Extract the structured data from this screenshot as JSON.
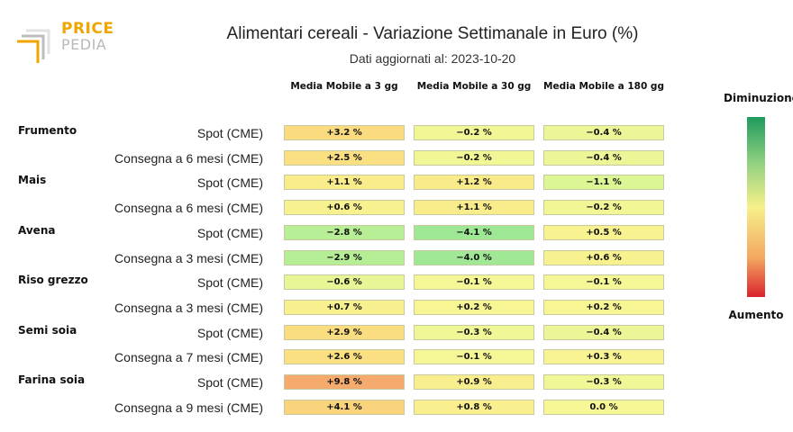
{
  "logo": {
    "line1": "PRICE",
    "line2": "PEDIA",
    "icon": "pricepedia-logo-icon"
  },
  "chart_data": {
    "type": "table",
    "title": "Alimentari cereali - Variazione Settimanale in Euro (%)",
    "subtitle": "Dati aggiornati al: 2023-10-20",
    "columns": [
      "Media Mobile a 3 gg",
      "Media Mobile a 30 gg",
      "Media Mobile a 180 gg"
    ],
    "groups": [
      {
        "name": "Frumento",
        "rows": [
          {
            "label": "Spot (CME)",
            "values": [
              3.2,
              -0.2,
              -0.4
            ],
            "display": [
              "+3.2 %",
              "−0.2 %",
              "−0.4 %"
            ]
          },
          {
            "label": "Consegna a 6 mesi (CME)",
            "values": [
              2.5,
              -0.2,
              -0.4
            ],
            "display": [
              "+2.5 %",
              "−0.2 %",
              "−0.4 %"
            ]
          }
        ]
      },
      {
        "name": "Mais",
        "rows": [
          {
            "label": "Spot (CME)",
            "values": [
              1.1,
              1.2,
              -1.1
            ],
            "display": [
              "+1.1 %",
              "+1.2 %",
              "−1.1 %"
            ]
          },
          {
            "label": "Consegna a 6 mesi (CME)",
            "values": [
              0.6,
              1.1,
              -0.2
            ],
            "display": [
              "+0.6 %",
              "+1.1 %",
              "−0.2 %"
            ]
          }
        ]
      },
      {
        "name": "Avena",
        "rows": [
          {
            "label": "Spot (CME)",
            "values": [
              -2.8,
              -4.1,
              0.5
            ],
            "display": [
              "−2.8 %",
              "−4.1 %",
              "+0.5 %"
            ]
          },
          {
            "label": "Consegna a 3 mesi (CME)",
            "values": [
              -2.9,
              -4.0,
              0.6
            ],
            "display": [
              "−2.9 %",
              "−4.0 %",
              "+0.6 %"
            ]
          }
        ]
      },
      {
        "name": "Riso grezzo",
        "rows": [
          {
            "label": "Spot (CME)",
            "values": [
              -0.6,
              -0.1,
              -0.1
            ],
            "display": [
              "−0.6 %",
              "−0.1 %",
              "−0.1 %"
            ]
          },
          {
            "label": "Consegna a 3 mesi (CME)",
            "values": [
              0.7,
              0.2,
              0.2
            ],
            "display": [
              "+0.7 %",
              "+0.2 %",
              "+0.2 %"
            ]
          }
        ]
      },
      {
        "name": "Semi soia",
        "rows": [
          {
            "label": "Spot (CME)",
            "values": [
              2.9,
              -0.3,
              -0.4
            ],
            "display": [
              "+2.9 %",
              "−0.3 %",
              "−0.4 %"
            ]
          },
          {
            "label": "Consegna a 7 mesi (CME)",
            "values": [
              2.6,
              -0.1,
              0.3
            ],
            "display": [
              "+2.6 %",
              "−0.1 %",
              "+0.3 %"
            ]
          }
        ]
      },
      {
        "name": "Farina soia",
        "rows": [
          {
            "label": "Spot (CME)",
            "values": [
              9.8,
              0.9,
              -0.3
            ],
            "display": [
              "+9.8 %",
              "+0.9 %",
              "−0.3 %"
            ]
          },
          {
            "label": "Consegna a 9 mesi (CME)",
            "values": [
              4.1,
              0.8,
              0.0
            ],
            "display": [
              "+4.1 %",
              "+0.8 %",
              "0.0 %"
            ]
          }
        ]
      }
    ],
    "legend": {
      "top": "Diminuzione",
      "bottom": "Aumento",
      "top_color": "#1f9a5c",
      "middle_color": "#f6f08a",
      "bottom_color": "#d9232f"
    }
  }
}
